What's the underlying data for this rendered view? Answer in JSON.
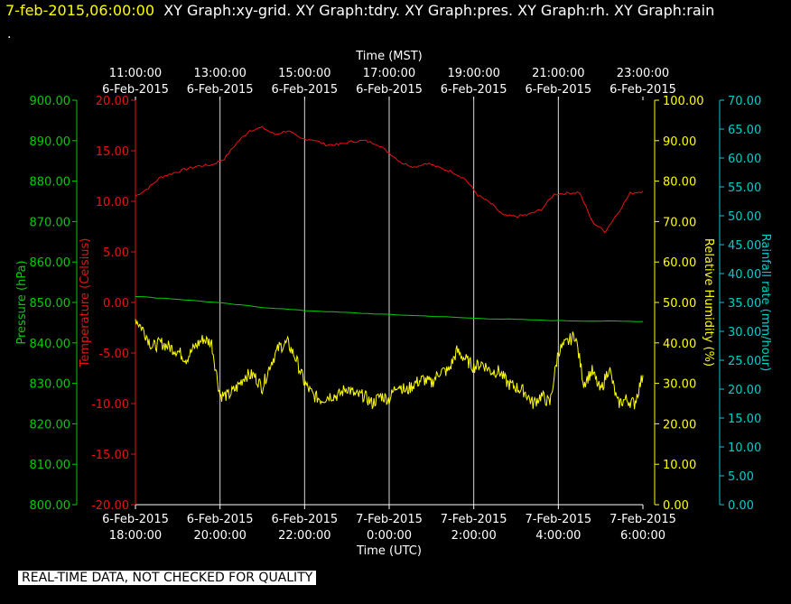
{
  "header": {
    "timestamp": "7-feb-2015,06:00:00",
    "graphs": "XY Graph:xy-grid.  XY Graph:tdry.  XY Graph:pres.  XY Graph:rh.  XY Graph:rain",
    "second_line": "."
  },
  "footer": {
    "notice": "REAL-TIME DATA, NOT CHECKED FOR QUALITY"
  },
  "colors": {
    "pressure": "#00cc00",
    "temperature": "#ee1111",
    "humidity": "#ffff00",
    "rain": "#00cccc",
    "grid": "#ffffff",
    "background": "#000000"
  },
  "chart_data": {
    "type": "line",
    "x_top": {
      "label": "Time (MST)",
      "ticks": [
        [
          "11:00:00",
          "6-Feb-2015"
        ],
        [
          "13:00:00",
          "6-Feb-2015"
        ],
        [
          "15:00:00",
          "6-Feb-2015"
        ],
        [
          "17:00:00",
          "6-Feb-2015"
        ],
        [
          "19:00:00",
          "6-Feb-2015"
        ],
        [
          "21:00:00",
          "6-Feb-2015"
        ],
        [
          "23:00:00",
          "6-Feb-2015"
        ]
      ]
    },
    "x_bottom": {
      "label": "Time (UTC)",
      "ticks": [
        [
          "6-Feb-2015",
          "18:00:00"
        ],
        [
          "6-Feb-2015",
          "20:00:00"
        ],
        [
          "6-Feb-2015",
          "22:00:00"
        ],
        [
          "7-Feb-2015",
          "0:00:00"
        ],
        [
          "7-Feb-2015",
          "2:00:00"
        ],
        [
          "7-Feb-2015",
          "4:00:00"
        ],
        [
          "7-Feb-2015",
          "6:00:00"
        ]
      ]
    },
    "xlim_hours": [
      0,
      12
    ],
    "axes": {
      "pressure": {
        "label": "Pressure (hPa)",
        "range": [
          800,
          900
        ],
        "ticks": [
          "800.00",
          "810.00",
          "820.00",
          "830.00",
          "840.00",
          "850.00",
          "860.00",
          "870.00",
          "880.00",
          "890.00",
          "900.00"
        ]
      },
      "temperature": {
        "label": "Temperature (Celsius)",
        "range": [
          -20,
          20
        ],
        "ticks": [
          "-20.00",
          "-15.00",
          "-10.00",
          "-5.00",
          "0.00",
          "5.00",
          "10.00",
          "15.00",
          "20.00"
        ]
      },
      "humidity": {
        "label": "Relative Humidity (%)",
        "range": [
          0,
          100
        ],
        "ticks": [
          "0.00",
          "10.00",
          "20.00",
          "30.00",
          "40.00",
          "50.00",
          "60.00",
          "70.00",
          "80.00",
          "90.00",
          "100.00"
        ]
      },
      "rain": {
        "label": "Rainfall rate (mm/hour)",
        "range": [
          0,
          70
        ],
        "ticks": [
          "0.00",
          "5.00",
          "10.00",
          "15.00",
          "20.00",
          "25.00",
          "30.00",
          "35.00",
          "40.00",
          "45.00",
          "50.00",
          "55.00",
          "60.00",
          "65.00",
          "70.00"
        ]
      }
    },
    "grid": "vertical",
    "series": [
      {
        "axis": "temperature",
        "x": [
          0,
          0.3,
          0.6,
          0.9,
          1.2,
          1.5,
          1.8,
          2.1,
          2.4,
          2.7,
          3.0,
          3.3,
          3.6,
          3.9,
          4.2,
          4.5,
          4.8,
          5.1,
          5.4,
          5.7,
          6.0,
          6.3,
          6.6,
          6.9,
          7.2,
          7.5,
          7.8,
          8.1,
          8.4,
          8.7,
          9.0,
          9.3,
          9.6,
          9.9,
          10.2,
          10.5,
          10.8,
          11.1,
          11.4,
          11.7,
          12.0
        ],
        "values": [
          10.5,
          11.3,
          12.4,
          12.8,
          13.2,
          13.5,
          13.6,
          14.2,
          15.8,
          17.0,
          17.3,
          16.6,
          17.0,
          16.2,
          16.1,
          15.6,
          15.6,
          15.9,
          16.0,
          15.7,
          14.8,
          13.8,
          13.4,
          13.8,
          13.3,
          12.9,
          12.2,
          10.6,
          9.8,
          8.6,
          8.5,
          8.7,
          9.2,
          10.7,
          10.8,
          10.9,
          8.0,
          7.0,
          8.8,
          10.8,
          11.0
        ]
      },
      {
        "axis": "pressure",
        "x": [
          0,
          1,
          2,
          3,
          4,
          5,
          6,
          7,
          8,
          9,
          10,
          11,
          12
        ],
        "values": [
          851.5,
          850.8,
          849.9,
          848.8,
          848.0,
          847.5,
          847.0,
          846.6,
          846.1,
          845.8,
          845.5,
          845.4,
          845.3
        ]
      },
      {
        "axis": "humidity",
        "x": [
          0,
          0.2,
          0.4,
          0.6,
          0.8,
          1.0,
          1.2,
          1.4,
          1.6,
          1.8,
          2.0,
          2.2,
          2.4,
          2.6,
          2.8,
          3.0,
          3.2,
          3.4,
          3.6,
          3.8,
          4.0,
          4.2,
          4.4,
          4.6,
          4.8,
          5.0,
          5.2,
          5.4,
          5.6,
          5.8,
          6.0,
          6.2,
          6.4,
          6.6,
          6.8,
          7.0,
          7.2,
          7.4,
          7.6,
          7.8,
          8.0,
          8.2,
          8.4,
          8.6,
          8.8,
          9.0,
          9.2,
          9.4,
          9.6,
          9.8,
          10.0,
          10.2,
          10.4,
          10.6,
          10.8,
          11.0,
          11.2,
          11.4,
          11.6,
          11.8,
          12.0
        ],
        "values": [
          46,
          43,
          39,
          40,
          39,
          38,
          36,
          39,
          41,
          40,
          27,
          27,
          29,
          32,
          32,
          29,
          35,
          39,
          40,
          36,
          30,
          27,
          26,
          27,
          27,
          29,
          27,
          27,
          25,
          27,
          26,
          30,
          28,
          30,
          31,
          30,
          33,
          33,
          38,
          36,
          34,
          35,
          33,
          33,
          30,
          29,
          28,
          25,
          27,
          25,
          38,
          40,
          42,
          30,
          33,
          28,
          34,
          25,
          26,
          25,
          32
        ]
      }
    ]
  }
}
